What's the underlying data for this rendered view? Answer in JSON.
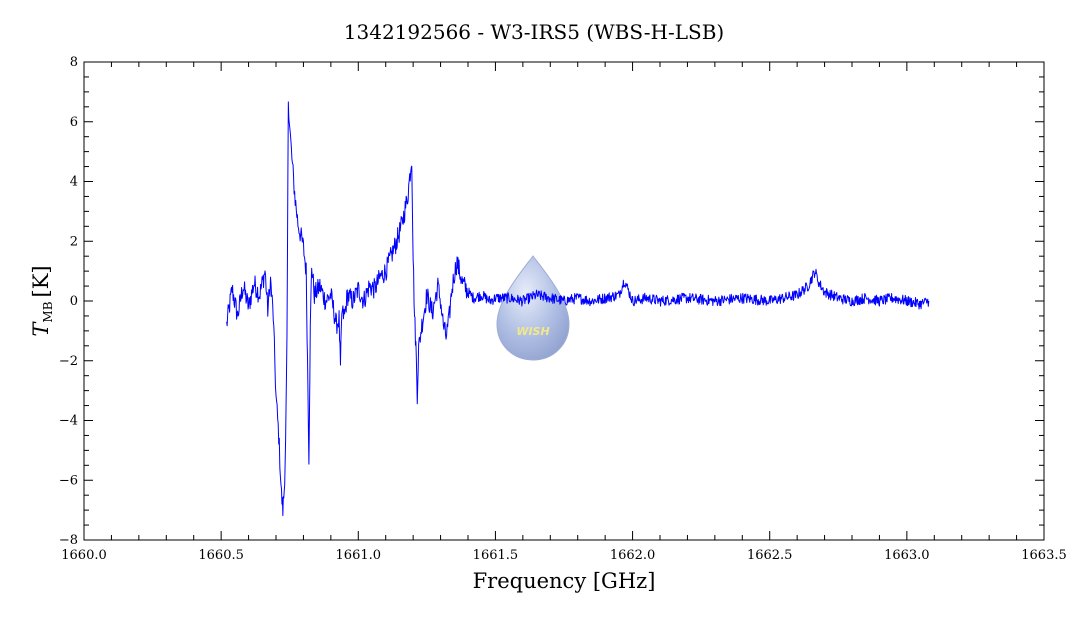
{
  "colors": {
    "series": "#0000ff",
    "logo_text": "#f0e060",
    "logo_fill": "#8fa6d8"
  },
  "watermark": {
    "text": "WISH",
    "icon": "water-drop-icon"
  },
  "chart_data": {
    "type": "line",
    "title": "1342192566 - W3-IRS5 (WBS-H-LSB)",
    "xlabel": "Frequency [GHz]",
    "ylabel_main": "T",
    "ylabel_sub": "MB",
    "ylabel_unit": "[K]",
    "xlim": [
      1660.0,
      1663.5
    ],
    "ylim": [
      -8,
      8
    ],
    "x_ticks": [
      "1660.0",
      "1660.5",
      "1661.0",
      "1661.5",
      "1662.0",
      "1662.5",
      "1663.0",
      "1663.5"
    ],
    "y_ticks": [
      "8",
      "6",
      "4",
      "2",
      "0",
      "−2",
      "−4",
      "−6",
      "−8"
    ],
    "grid": false,
    "series": [
      {
        "points": [
          [
            1660.52,
            -0.8
          ],
          [
            1660.54,
            0.4
          ],
          [
            1660.56,
            -0.5
          ],
          [
            1660.58,
            0.5
          ],
          [
            1660.6,
            -0.2
          ],
          [
            1660.62,
            0.6
          ],
          [
            1660.64,
            0.2
          ],
          [
            1660.66,
            1.0
          ],
          [
            1660.67,
            -0.3
          ],
          [
            1660.68,
            0.7
          ],
          [
            1660.69,
            -0.5
          ],
          [
            1660.7,
            -3.2
          ],
          [
            1660.71,
            -4.5
          ],
          [
            1660.72,
            -6.5
          ],
          [
            1660.725,
            -7.0
          ],
          [
            1660.73,
            -6.3
          ],
          [
            1660.735,
            -4.8
          ],
          [
            1660.74,
            -1.5
          ],
          [
            1660.745,
            6.8
          ],
          [
            1660.75,
            5.8
          ],
          [
            1660.76,
            4.5
          ],
          [
            1660.77,
            3.4
          ],
          [
            1660.78,
            2.6
          ],
          [
            1660.79,
            2.2
          ],
          [
            1660.8,
            1.8
          ],
          [
            1660.81,
            1.0
          ],
          [
            1660.815,
            -2.0
          ],
          [
            1660.82,
            -5.2
          ],
          [
            1660.825,
            -1.0
          ],
          [
            1660.83,
            1.2
          ],
          [
            1660.84,
            0.2
          ],
          [
            1660.86,
            0.5
          ],
          [
            1660.88,
            0.0
          ],
          [
            1660.9,
            0.2
          ],
          [
            1660.92,
            -0.8
          ],
          [
            1660.93,
            -0.6
          ],
          [
            1660.935,
            -2.3
          ],
          [
            1660.94,
            -0.4
          ],
          [
            1660.95,
            -0.5
          ],
          [
            1660.96,
            0.2
          ],
          [
            1660.98,
            0.0
          ],
          [
            1661.0,
            0.4
          ],
          [
            1661.02,
            0.0
          ],
          [
            1661.04,
            0.5
          ],
          [
            1661.06,
            0.4
          ],
          [
            1661.08,
            0.8
          ],
          [
            1661.1,
            1.0
          ],
          [
            1661.12,
            1.5
          ],
          [
            1661.14,
            2.0
          ],
          [
            1661.16,
            2.6
          ],
          [
            1661.18,
            3.5
          ],
          [
            1661.195,
            4.8
          ],
          [
            1661.2,
            1.5
          ],
          [
            1661.205,
            -0.5
          ],
          [
            1661.21,
            -1.5
          ],
          [
            1661.215,
            -3.1
          ],
          [
            1661.22,
            -1.6
          ],
          [
            1661.23,
            -0.9
          ],
          [
            1661.25,
            0.2
          ],
          [
            1661.27,
            -0.4
          ],
          [
            1661.29,
            0.5
          ],
          [
            1661.3,
            0.0
          ],
          [
            1661.31,
            -0.8
          ],
          [
            1661.32,
            -1.2
          ],
          [
            1661.33,
            -0.7
          ],
          [
            1661.34,
            0.3
          ],
          [
            1661.35,
            0.9
          ],
          [
            1661.36,
            1.3
          ],
          [
            1661.38,
            0.6
          ],
          [
            1661.4,
            0.3
          ],
          [
            1661.42,
            0.1
          ],
          [
            1661.45,
            0.2
          ],
          [
            1661.48,
            0.0
          ],
          [
            1661.5,
            0.1
          ],
          [
            1661.55,
            0.1
          ],
          [
            1661.6,
            0.0
          ],
          [
            1661.65,
            0.2
          ],
          [
            1661.7,
            0.1
          ],
          [
            1661.75,
            0.0
          ],
          [
            1661.8,
            0.1
          ],
          [
            1661.85,
            0.0
          ],
          [
            1661.9,
            0.1
          ],
          [
            1661.95,
            0.2
          ],
          [
            1661.97,
            0.7
          ],
          [
            1662.0,
            0.0
          ],
          [
            1662.05,
            0.1
          ],
          [
            1662.1,
            0.0
          ],
          [
            1662.2,
            0.1
          ],
          [
            1662.3,
            0.0
          ],
          [
            1662.4,
            0.1
          ],
          [
            1662.5,
            0.0
          ],
          [
            1662.55,
            0.1
          ],
          [
            1662.6,
            0.2
          ],
          [
            1662.64,
            0.5
          ],
          [
            1662.665,
            1.0
          ],
          [
            1662.68,
            0.6
          ],
          [
            1662.7,
            0.3
          ],
          [
            1662.75,
            0.1
          ],
          [
            1662.8,
            0.0
          ],
          [
            1662.85,
            0.1
          ],
          [
            1662.9,
            0.0
          ],
          [
            1662.95,
            0.1
          ],
          [
            1663.0,
            0.0
          ],
          [
            1663.05,
            -0.1
          ],
          [
            1663.08,
            0.0
          ]
        ]
      }
    ]
  }
}
